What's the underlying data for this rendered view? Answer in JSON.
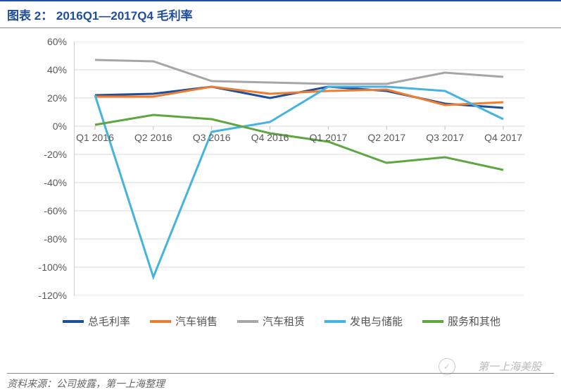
{
  "title": "图表 2：   2016Q1—2017Q4 毛利率",
  "source": "资料来源：公司披露，第一上海整理",
  "watermark": "第一上海美股",
  "chart": {
    "type": "line",
    "background_color": "#ffffff",
    "axis_color": "#bfbfbf",
    "grid_color": "#d9d9d9",
    "tick_fontsize": 14,
    "tick_color": "#595959",
    "line_width": 3,
    "ymin": -120,
    "ymax": 60,
    "ytick_step": 20,
    "ypct": true,
    "xlabels": [
      "Q1 2016",
      "Q2 2016",
      "Q3 2016",
      "Q4 2016",
      "Q1 2017",
      "Q2 2017",
      "Q3 2017",
      "Q4 2017"
    ],
    "xaxis_at_y": 0,
    "series": [
      {
        "name": "总毛利率",
        "color": "#1f4e9c",
        "values": [
          22,
          23,
          28,
          20,
          28,
          25,
          16,
          13
        ]
      },
      {
        "name": "汽车销售",
        "color": "#ed7d31",
        "values": [
          21,
          21,
          28,
          23,
          25,
          26,
          15,
          17
        ]
      },
      {
        "name": "汽车租赁",
        "color": "#a6a6a6",
        "values": [
          47,
          46,
          32,
          31,
          30,
          30,
          38,
          35
        ]
      },
      {
        "name": "发电与储能",
        "color": "#44b3e1",
        "values": [
          22,
          -107,
          -4,
          3,
          28,
          28,
          25,
          5
        ]
      },
      {
        "name": "服务和其他",
        "color": "#5fa641",
        "values": [
          1,
          8,
          5,
          -5,
          -11,
          -26,
          -22,
          -31
        ]
      }
    ]
  }
}
